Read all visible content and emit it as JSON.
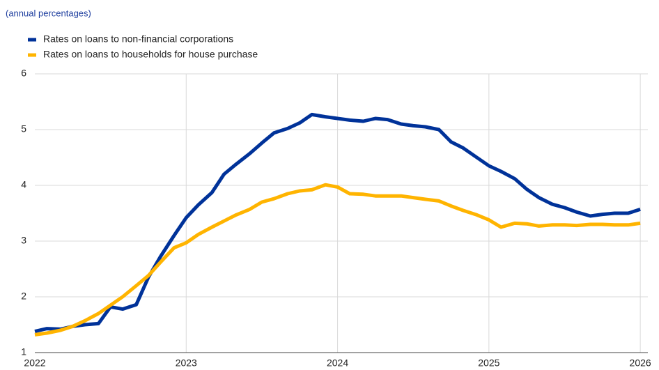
{
  "chart_data": {
    "type": "line",
    "subtitle": "(annual percentages)",
    "x": [
      2022,
      2022.08,
      2022.17,
      2022.25,
      2022.33,
      2022.42,
      2022.5,
      2022.58,
      2022.67,
      2022.75,
      2022.83,
      2022.92,
      2023,
      2023.08,
      2023.17,
      2023.25,
      2023.33,
      2023.42,
      2023.5,
      2023.58,
      2023.67,
      2023.75,
      2023.83,
      2023.92,
      2024,
      2024.08,
      2024.17,
      2024.25,
      2024.33,
      2024.42,
      2024.5,
      2024.58,
      2024.67,
      2024.75,
      2024.83,
      2024.92,
      2025,
      2025.08,
      2025.17,
      2025.25,
      2025.33,
      2025.42,
      2025.5,
      2025.58,
      2025.67,
      2025.75,
      2025.83,
      2025.92,
      2026
    ],
    "series": [
      {
        "name": "Rates on loans to non-financial corporations",
        "color": "#003299",
        "values": [
          1.38,
          1.43,
          1.42,
          1.47,
          1.5,
          1.52,
          1.82,
          1.78,
          1.86,
          2.35,
          2.72,
          3.1,
          3.42,
          3.65,
          3.87,
          4.2,
          4.38,
          4.57,
          4.76,
          4.94,
          5.02,
          5.12,
          5.27,
          5.23,
          5.2,
          5.17,
          5.15,
          5.2,
          5.18,
          5.1,
          5.07,
          5.05,
          5.0,
          4.78,
          4.67,
          4.5,
          4.35,
          4.25,
          4.12,
          3.93,
          3.78,
          3.66,
          3.6,
          3.52,
          3.45,
          3.48,
          3.5,
          3.5,
          3.57
        ]
      },
      {
        "name": "Rates on loans to households for house purchase",
        "color": "#ffb400",
        "values": [
          1.32,
          1.35,
          1.4,
          1.47,
          1.57,
          1.7,
          1.85,
          2.0,
          2.2,
          2.38,
          2.62,
          2.88,
          2.97,
          3.12,
          3.25,
          3.36,
          3.47,
          3.57,
          3.7,
          3.76,
          3.85,
          3.9,
          3.92,
          4.01,
          3.97,
          3.85,
          3.84,
          3.81,
          3.81,
          3.81,
          3.78,
          3.75,
          3.72,
          3.63,
          3.55,
          3.47,
          3.38,
          3.25,
          3.32,
          3.31,
          3.27,
          3.29,
          3.29,
          3.28,
          3.3,
          3.3,
          3.29,
          3.29,
          3.32
        ]
      }
    ],
    "xlim": [
      2022,
      2026.05
    ],
    "xticks": [
      2022,
      2023,
      2024,
      2025,
      2026
    ],
    "ylim": [
      1,
      6
    ],
    "yticks": [
      1,
      2,
      3,
      4,
      5,
      6
    ],
    "grid": true
  }
}
